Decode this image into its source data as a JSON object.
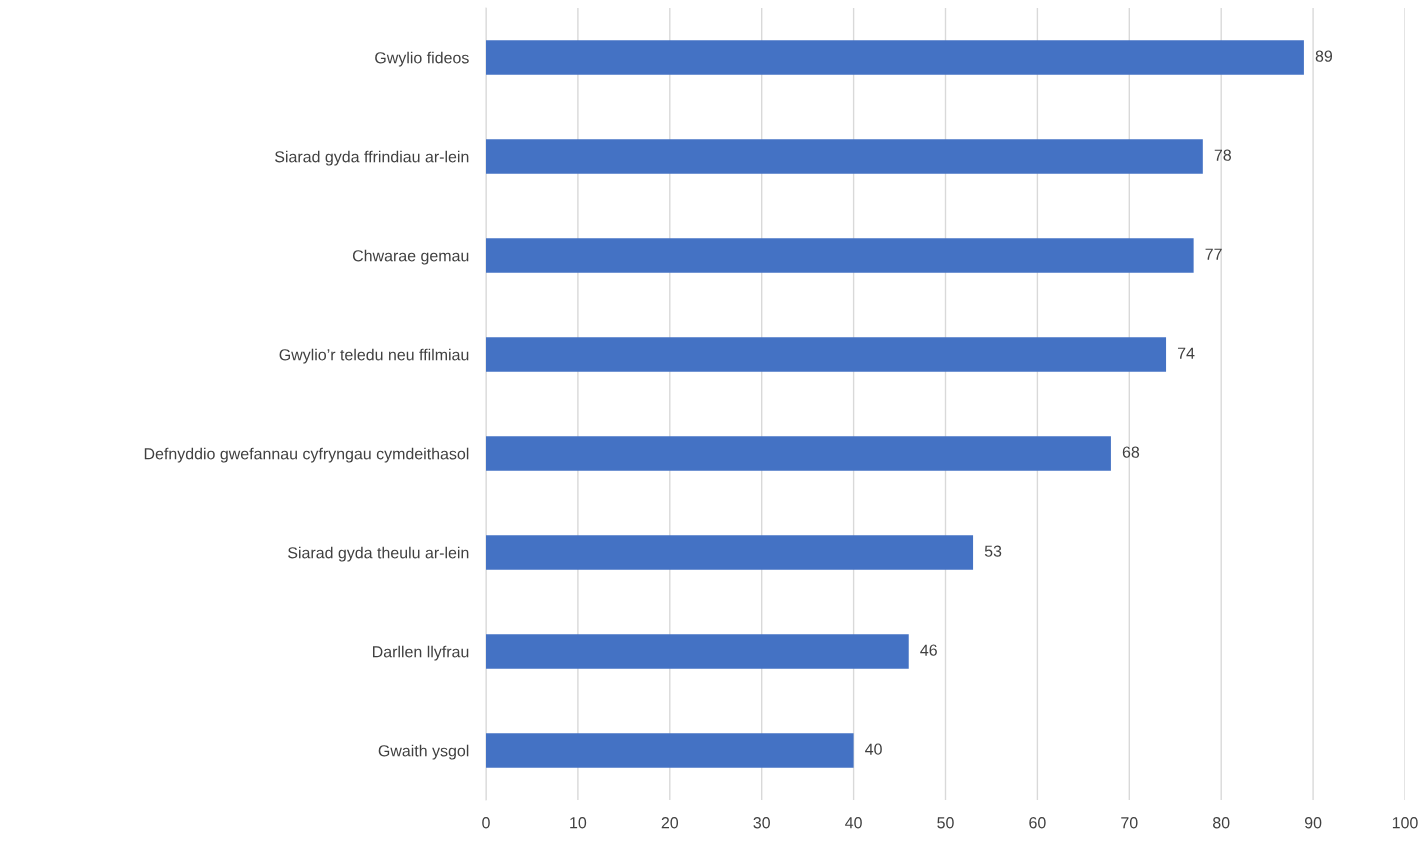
{
  "chart_data": {
    "type": "bar",
    "orientation": "horizontal",
    "color": "#4472c4",
    "categories": [
      "Gwylio fideos",
      "Siarad gyda ffrindiau ar-lein",
      "Chwarae gemau",
      "Gwylio’r teledu neu ffilmiau",
      "Defnyddio gwefannau cyfryngau cymdeithasol",
      "Siarad gyda theulu ar-lein",
      "Darllen llyfrau",
      "Gwaith ysgol"
    ],
    "values": [
      89,
      78,
      77,
      74,
      68,
      53,
      46,
      40
    ],
    "xlim": [
      0,
      100
    ],
    "xticks": [
      0,
      10,
      20,
      30,
      40,
      50,
      60,
      70,
      80,
      90,
      100
    ],
    "grid": "x",
    "data_labels": true,
    "legend": false
  }
}
